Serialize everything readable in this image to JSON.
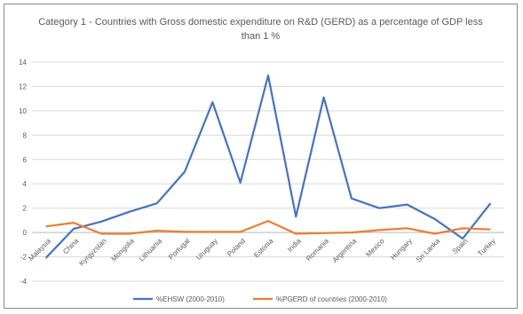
{
  "chart_data": {
    "type": "line",
    "title": "Category 1 - Countries with Gross domestic expenditure on R&D (GERD) as a percentage of GDP less than 1 %",
    "categories": [
      "Malaysia",
      "China",
      "Kyrgyzstan",
      "Mongolia",
      "Lithuania",
      "Portugal",
      "Uruguay",
      "Poland",
      "Estonia",
      "India",
      "Romania",
      "Argentina",
      "Mexico",
      "Hungary",
      "Sri Lanka",
      "Spain",
      "Turkey"
    ],
    "ylim": [
      -4,
      14
    ],
    "yticks": [
      -4,
      -2,
      0,
      2,
      4,
      6,
      8,
      10,
      12,
      14
    ],
    "grid": true,
    "legend_position": "bottom",
    "series": [
      {
        "name": "%EHSW (2000-2010)",
        "color": "#4472C4",
        "values": [
          -2.1,
          0.3,
          0.9,
          1.7,
          2.4,
          5.0,
          10.7,
          4.1,
          12.9,
          1.3,
          11.1,
          2.8,
          2.0,
          2.3,
          1.1,
          -0.5,
          2.4
        ]
      },
      {
        "name": "%PGERD of countries (2000-2010)",
        "color": "#ED7D31",
        "values": [
          0.5,
          0.8,
          -0.1,
          -0.1,
          0.15,
          0.05,
          0.05,
          0.05,
          0.95,
          -0.1,
          -0.05,
          0.0,
          0.2,
          0.35,
          -0.1,
          0.35,
          0.25
        ]
      }
    ]
  }
}
